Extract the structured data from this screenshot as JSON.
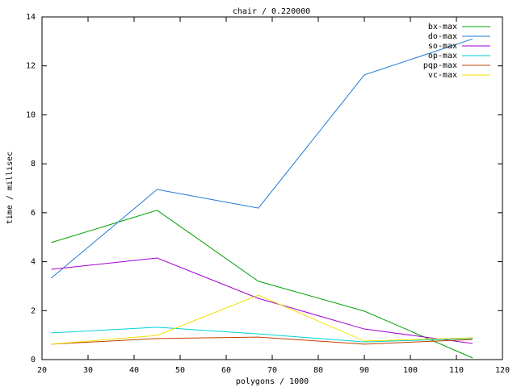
{
  "chart_data": {
    "type": "line",
    "title": "chair / 0.220000",
    "x_label": "polygons / 1000",
    "y_label": "time / millisec",
    "x": [
      22,
      45,
      67,
      90,
      113.5
    ],
    "series": [
      {
        "name": "bx-max",
        "color": "#00a000",
        "values": [
          4.78,
          6.1,
          3.2,
          1.98,
          0.07
        ]
      },
      {
        "name": "do-max",
        "color": "#1e78d8",
        "values": [
          3.33,
          6.95,
          6.19,
          11.63,
          13.1
        ]
      },
      {
        "name": "so-max",
        "color": "#a000d0",
        "values": [
          3.69,
          4.15,
          2.5,
          1.25,
          0.66
        ]
      },
      {
        "name": "op-max",
        "color": "#00d0d8",
        "values": [
          1.09,
          1.32,
          1.05,
          0.72,
          0.86
        ]
      },
      {
        "name": "pqp-max",
        "color": "#c04000",
        "values": [
          0.63,
          0.86,
          0.92,
          0.63,
          0.82
        ]
      },
      {
        "name": "vc-max",
        "color": "#f0e000",
        "values": [
          0.63,
          0.99,
          2.63,
          0.76,
          0.89
        ]
      }
    ],
    "xlim": [
      20,
      120
    ],
    "xticks": [
      20,
      30,
      40,
      50,
      60,
      70,
      80,
      90,
      100,
      110,
      120
    ],
    "ylim": [
      0,
      14
    ],
    "yticks": [
      0,
      2,
      4,
      6,
      8,
      10,
      12,
      14
    ],
    "grid": false,
    "legend": "top-right"
  }
}
